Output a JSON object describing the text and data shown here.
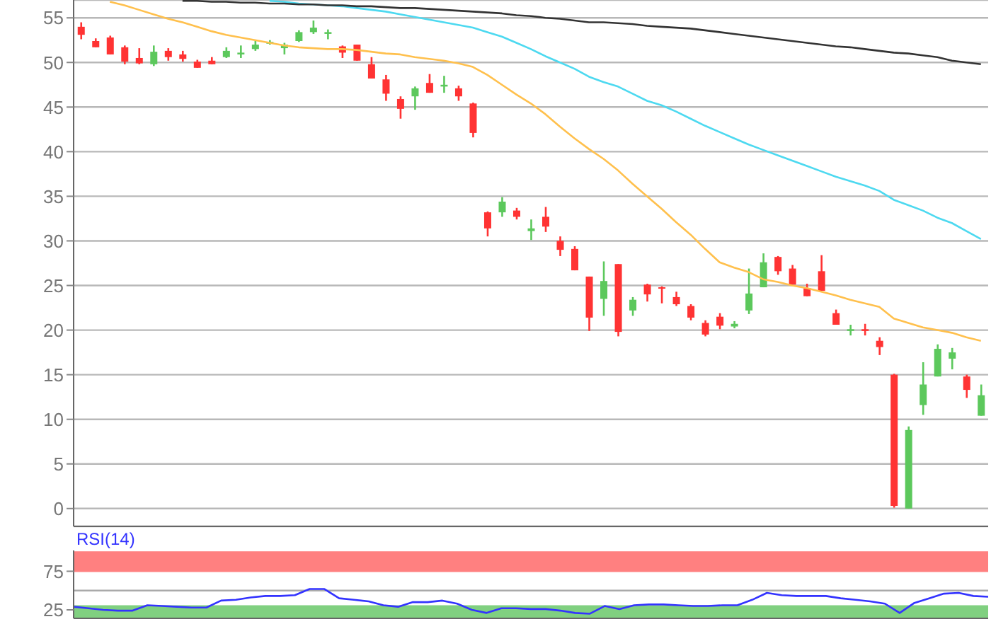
{
  "chart_data": [
    {
      "type": "candlestick",
      "categories": [
        null,
        null,
        null,
        null,
        null,
        null,
        null,
        null,
        null,
        null,
        null,
        null,
        null,
        null,
        null,
        null,
        null,
        null,
        null,
        null,
        null,
        null,
        null,
        null,
        null,
        null,
        null,
        null,
        null,
        null,
        null,
        null,
        null,
        null,
        null,
        null,
        null,
        null,
        null,
        null,
        null,
        null,
        null,
        null,
        null,
        null,
        null,
        null,
        null,
        null,
        null,
        null,
        null,
        null,
        null,
        null,
        null,
        null,
        null,
        null,
        null,
        null,
        null
      ],
      "ohlc": [
        [
          54.0,
          54.5,
          52.6,
          53.1
        ],
        [
          52.4,
          52.7,
          51.7,
          51.7
        ],
        [
          52.8,
          53.0,
          50.9,
          50.9
        ],
        [
          51.7,
          51.9,
          49.8,
          50.1
        ],
        [
          50.5,
          51.6,
          49.8,
          49.9
        ],
        [
          49.8,
          51.9,
          49.6,
          51.2
        ],
        [
          51.3,
          51.6,
          50.2,
          50.6
        ],
        [
          50.9,
          51.3,
          50.1,
          50.4
        ],
        [
          50.1,
          50.3,
          49.4,
          49.4
        ],
        [
          50.2,
          50.6,
          49.8,
          49.8
        ],
        [
          50.6,
          51.7,
          50.5,
          51.3
        ],
        [
          50.9,
          51.9,
          50.5,
          51.1
        ],
        [
          51.5,
          52.4,
          51.3,
          52.0
        ],
        [
          52.1,
          52.5,
          52.0,
          52.3
        ],
        [
          51.6,
          52.2,
          50.9,
          52.0
        ],
        [
          52.4,
          53.6,
          52.3,
          53.4
        ],
        [
          53.4,
          54.7,
          53.2,
          53.9
        ],
        [
          53.2,
          53.7,
          52.6,
          53.4
        ],
        [
          51.8,
          51.9,
          50.5,
          51.1
        ],
        [
          52.0,
          52.0,
          50.2,
          50.2
        ],
        [
          49.8,
          50.6,
          48.2,
          48.2
        ],
        [
          48.1,
          48.6,
          45.7,
          46.5
        ],
        [
          45.9,
          46.2,
          43.7,
          44.8
        ],
        [
          46.2,
          47.3,
          44.7,
          47.1
        ],
        [
          47.7,
          48.7,
          46.6,
          46.6
        ],
        [
          47.3,
          48.5,
          46.6,
          47.5
        ],
        [
          47.1,
          47.4,
          45.7,
          46.2
        ],
        [
          45.4,
          45.5,
          41.6,
          42.1
        ],
        [
          33.2,
          33.3,
          30.5,
          31.4
        ],
        [
          33.2,
          34.9,
          32.7,
          34.4
        ],
        [
          33.4,
          33.7,
          32.4,
          32.7
        ],
        [
          31.1,
          32.4,
          30.1,
          31.4
        ],
        [
          32.7,
          33.8,
          31.0,
          31.6
        ],
        [
          30.0,
          30.5,
          28.3,
          29.0
        ],
        [
          29.1,
          29.4,
          26.7,
          26.7
        ],
        [
          26.0,
          26.0,
          19.9,
          21.4
        ],
        [
          23.5,
          27.7,
          21.6,
          25.5
        ],
        [
          27.4,
          27.4,
          19.3,
          19.8
        ],
        [
          22.2,
          23.7,
          21.6,
          23.4
        ],
        [
          25.1,
          25.2,
          23.2,
          24.0
        ],
        [
          24.8,
          24.9,
          23.0,
          24.7
        ],
        [
          23.7,
          24.3,
          22.7,
          22.9
        ],
        [
          22.7,
          22.9,
          21.1,
          21.4
        ],
        [
          20.8,
          21.1,
          19.3,
          19.5
        ],
        [
          21.5,
          21.9,
          20.1,
          20.5
        ],
        [
          20.4,
          21.0,
          20.2,
          20.7
        ],
        [
          22.2,
          26.9,
          21.8,
          24.1
        ],
        [
          24.8,
          28.6,
          24.8,
          27.6
        ],
        [
          28.2,
          28.3,
          26.2,
          26.6
        ],
        [
          26.9,
          27.3,
          25.1,
          25.1
        ],
        [
          24.7,
          25.2,
          23.8,
          23.8
        ],
        [
          26.6,
          28.4,
          24.4,
          24.4
        ],
        [
          21.9,
          22.3,
          20.6,
          20.6
        ],
        [
          19.9,
          20.6,
          19.4,
          20.1
        ],
        [
          20.1,
          20.7,
          19.4,
          19.9
        ],
        [
          18.8,
          19.2,
          17.2,
          18.1
        ],
        [
          15.0,
          15.1,
          0.1,
          0.3
        ],
        [
          0.0,
          9.2,
          0.0,
          8.8
        ],
        [
          11.6,
          16.4,
          10.5,
          13.9
        ],
        [
          14.8,
          18.4,
          14.8,
          17.9
        ],
        [
          16.8,
          18.0,
          15.6,
          17.5
        ],
        [
          14.8,
          15.0,
          12.4,
          13.3
        ],
        [
          10.4,
          13.9,
          10.4,
          12.7
        ]
      ],
      "colors": [
        "#ff3333",
        "#ff3333",
        "#ff3333",
        "#ff3333",
        "#ff3333",
        "#5cc85c",
        "#ff3333",
        "#ff3333",
        "#ff3333",
        "#ff3333",
        "#5cc85c",
        "#5cc85c",
        "#5cc85c",
        "#5cc85c",
        "#5cc85c",
        "#5cc85c",
        "#5cc85c",
        "#5cc85c",
        "#ff3333",
        "#ff3333",
        "#ff3333",
        "#ff3333",
        "#ff3333",
        "#5cc85c",
        "#ff3333",
        "#5cc85c",
        "#ff3333",
        "#ff3333",
        "#ff3333",
        "#5cc85c",
        "#ff3333",
        "#5cc85c",
        "#ff3333",
        "#ff3333",
        "#ff3333",
        "#ff3333",
        "#5cc85c",
        "#ff3333",
        "#5cc85c",
        "#ff3333",
        "#ff3333",
        "#ff3333",
        "#ff3333",
        "#ff3333",
        "#ff3333",
        "#5cc85c",
        "#5cc85c",
        "#5cc85c",
        "#ff3333",
        "#ff3333",
        "#ff3333",
        "#ff3333",
        "#ff3333",
        "#5cc85c",
        "#ff3333",
        "#ff3333",
        "#ff3333",
        "#5cc85c",
        "#5cc85c",
        "#5cc85c",
        "#5cc85c",
        "#ff3333",
        "#5cc85c"
      ],
      "series": [
        {
          "type": "line",
          "color": "#ffc04d",
          "values": [
            null,
            null,
            56.8,
            56.4,
            55.9,
            55.4,
            54.9,
            54.5,
            54.0,
            53.5,
            53.1,
            52.8,
            52.5,
            52.2,
            51.9,
            51.7,
            51.6,
            51.5,
            51.5,
            51.4,
            51.2,
            51.0,
            50.9,
            50.6,
            50.4,
            50.2,
            49.9,
            49.5,
            48.6,
            47.5,
            46.4,
            45.4,
            44.2,
            42.8,
            41.5,
            40.3,
            39.2,
            37.9,
            36.4,
            35.0,
            33.6,
            32.1,
            30.7,
            29.1,
            27.6,
            27.0,
            26.5,
            25.7,
            25.4,
            25.0,
            24.7,
            24.3,
            23.9,
            23.4,
            23.0,
            22.6,
            21.3,
            20.8,
            20.3,
            20.0,
            19.7,
            19.2,
            18.8
          ]
        },
        {
          "type": "line",
          "color": "#4dd9f0",
          "values": [
            null,
            null,
            null,
            null,
            null,
            null,
            null,
            null,
            null,
            null,
            null,
            null,
            null,
            56.9,
            56.8,
            56.6,
            56.5,
            56.4,
            56.3,
            56.1,
            55.9,
            55.7,
            55.4,
            55.1,
            54.8,
            54.5,
            54.2,
            53.9,
            53.4,
            52.9,
            52.2,
            51.5,
            50.7,
            50.0,
            49.3,
            48.4,
            47.8,
            47.3,
            46.5,
            45.7,
            45.2,
            44.5,
            43.7,
            42.9,
            42.2,
            41.5,
            40.8,
            40.2,
            39.6,
            39.0,
            38.4,
            37.8,
            37.2,
            36.7,
            36.2,
            35.6,
            34.6,
            34.0,
            33.4,
            32.6,
            32.0,
            31.1,
            30.2
          ]
        },
        {
          "type": "line",
          "color": "#333333",
          "values": [
            null,
            null,
            null,
            null,
            null,
            null,
            null,
            56.9,
            56.9,
            56.8,
            56.8,
            56.7,
            56.7,
            56.6,
            56.6,
            56.5,
            56.5,
            56.4,
            56.4,
            56.3,
            56.3,
            56.2,
            56.1,
            56.1,
            56.0,
            55.9,
            55.8,
            55.7,
            55.6,
            55.5,
            55.3,
            55.2,
            55.0,
            54.9,
            54.7,
            54.5,
            54.5,
            54.4,
            54.3,
            54.1,
            54.0,
            53.9,
            53.8,
            53.6,
            53.4,
            53.2,
            53.0,
            52.8,
            52.6,
            52.4,
            52.2,
            52.0,
            51.8,
            51.7,
            51.5,
            51.3,
            51.1,
            51.0,
            50.8,
            50.6,
            50.2,
            50.0,
            49.8
          ]
        }
      ],
      "ylim": [
        -2,
        57
      ],
      "yticks": [
        0,
        5,
        10,
        15,
        20,
        25,
        30,
        35,
        40,
        45,
        50,
        55
      ],
      "grid": "y",
      "tick_labels": "y"
    },
    {
      "type": "line",
      "title": "RSI(14)",
      "categories": [
        null,
        null,
        null,
        null,
        null,
        null,
        null,
        null,
        null,
        null,
        null,
        null,
        null,
        null,
        null,
        null,
        null,
        null,
        null,
        null,
        null,
        null,
        null,
        null,
        null,
        null,
        null,
        null,
        null,
        null,
        null,
        null,
        null,
        null,
        null,
        null,
        null,
        null,
        null,
        null,
        null,
        null,
        null,
        null,
        null,
        null,
        null,
        null,
        null,
        null,
        null,
        null,
        null,
        null,
        null,
        null,
        null,
        null,
        null,
        null,
        null,
        null,
        null
      ],
      "series": [
        {
          "color": "#3333ff",
          "values": [
            29,
            27,
            25,
            24,
            24,
            31,
            30,
            29,
            28,
            28,
            37,
            38,
            41,
            43,
            43,
            44,
            52,
            52,
            40,
            38,
            36,
            31,
            29,
            35,
            35,
            37,
            33,
            25,
            21,
            27,
            27,
            26,
            26,
            24,
            21,
            20,
            30,
            26,
            31,
            32,
            32,
            31,
            30,
            30,
            31,
            31,
            38,
            47,
            44,
            43,
            43,
            43,
            40,
            38,
            36,
            33,
            21,
            34,
            40,
            46,
            47,
            43,
            42
          ]
        }
      ],
      "ylim": [
        14,
        102
      ],
      "yticks": [
        25,
        75
      ],
      "bands": [
        {
          "axis": "y",
          "from": 75,
          "to": 100,
          "color": "#ff8080"
        },
        {
          "axis": "y",
          "from": 14,
          "to": 30,
          "color": "#80d080"
        }
      ],
      "ref_lines": [
        {
          "axis": "y",
          "value": 50,
          "color": "#aaaaaa"
        }
      ],
      "tick_labels": "y"
    }
  ]
}
